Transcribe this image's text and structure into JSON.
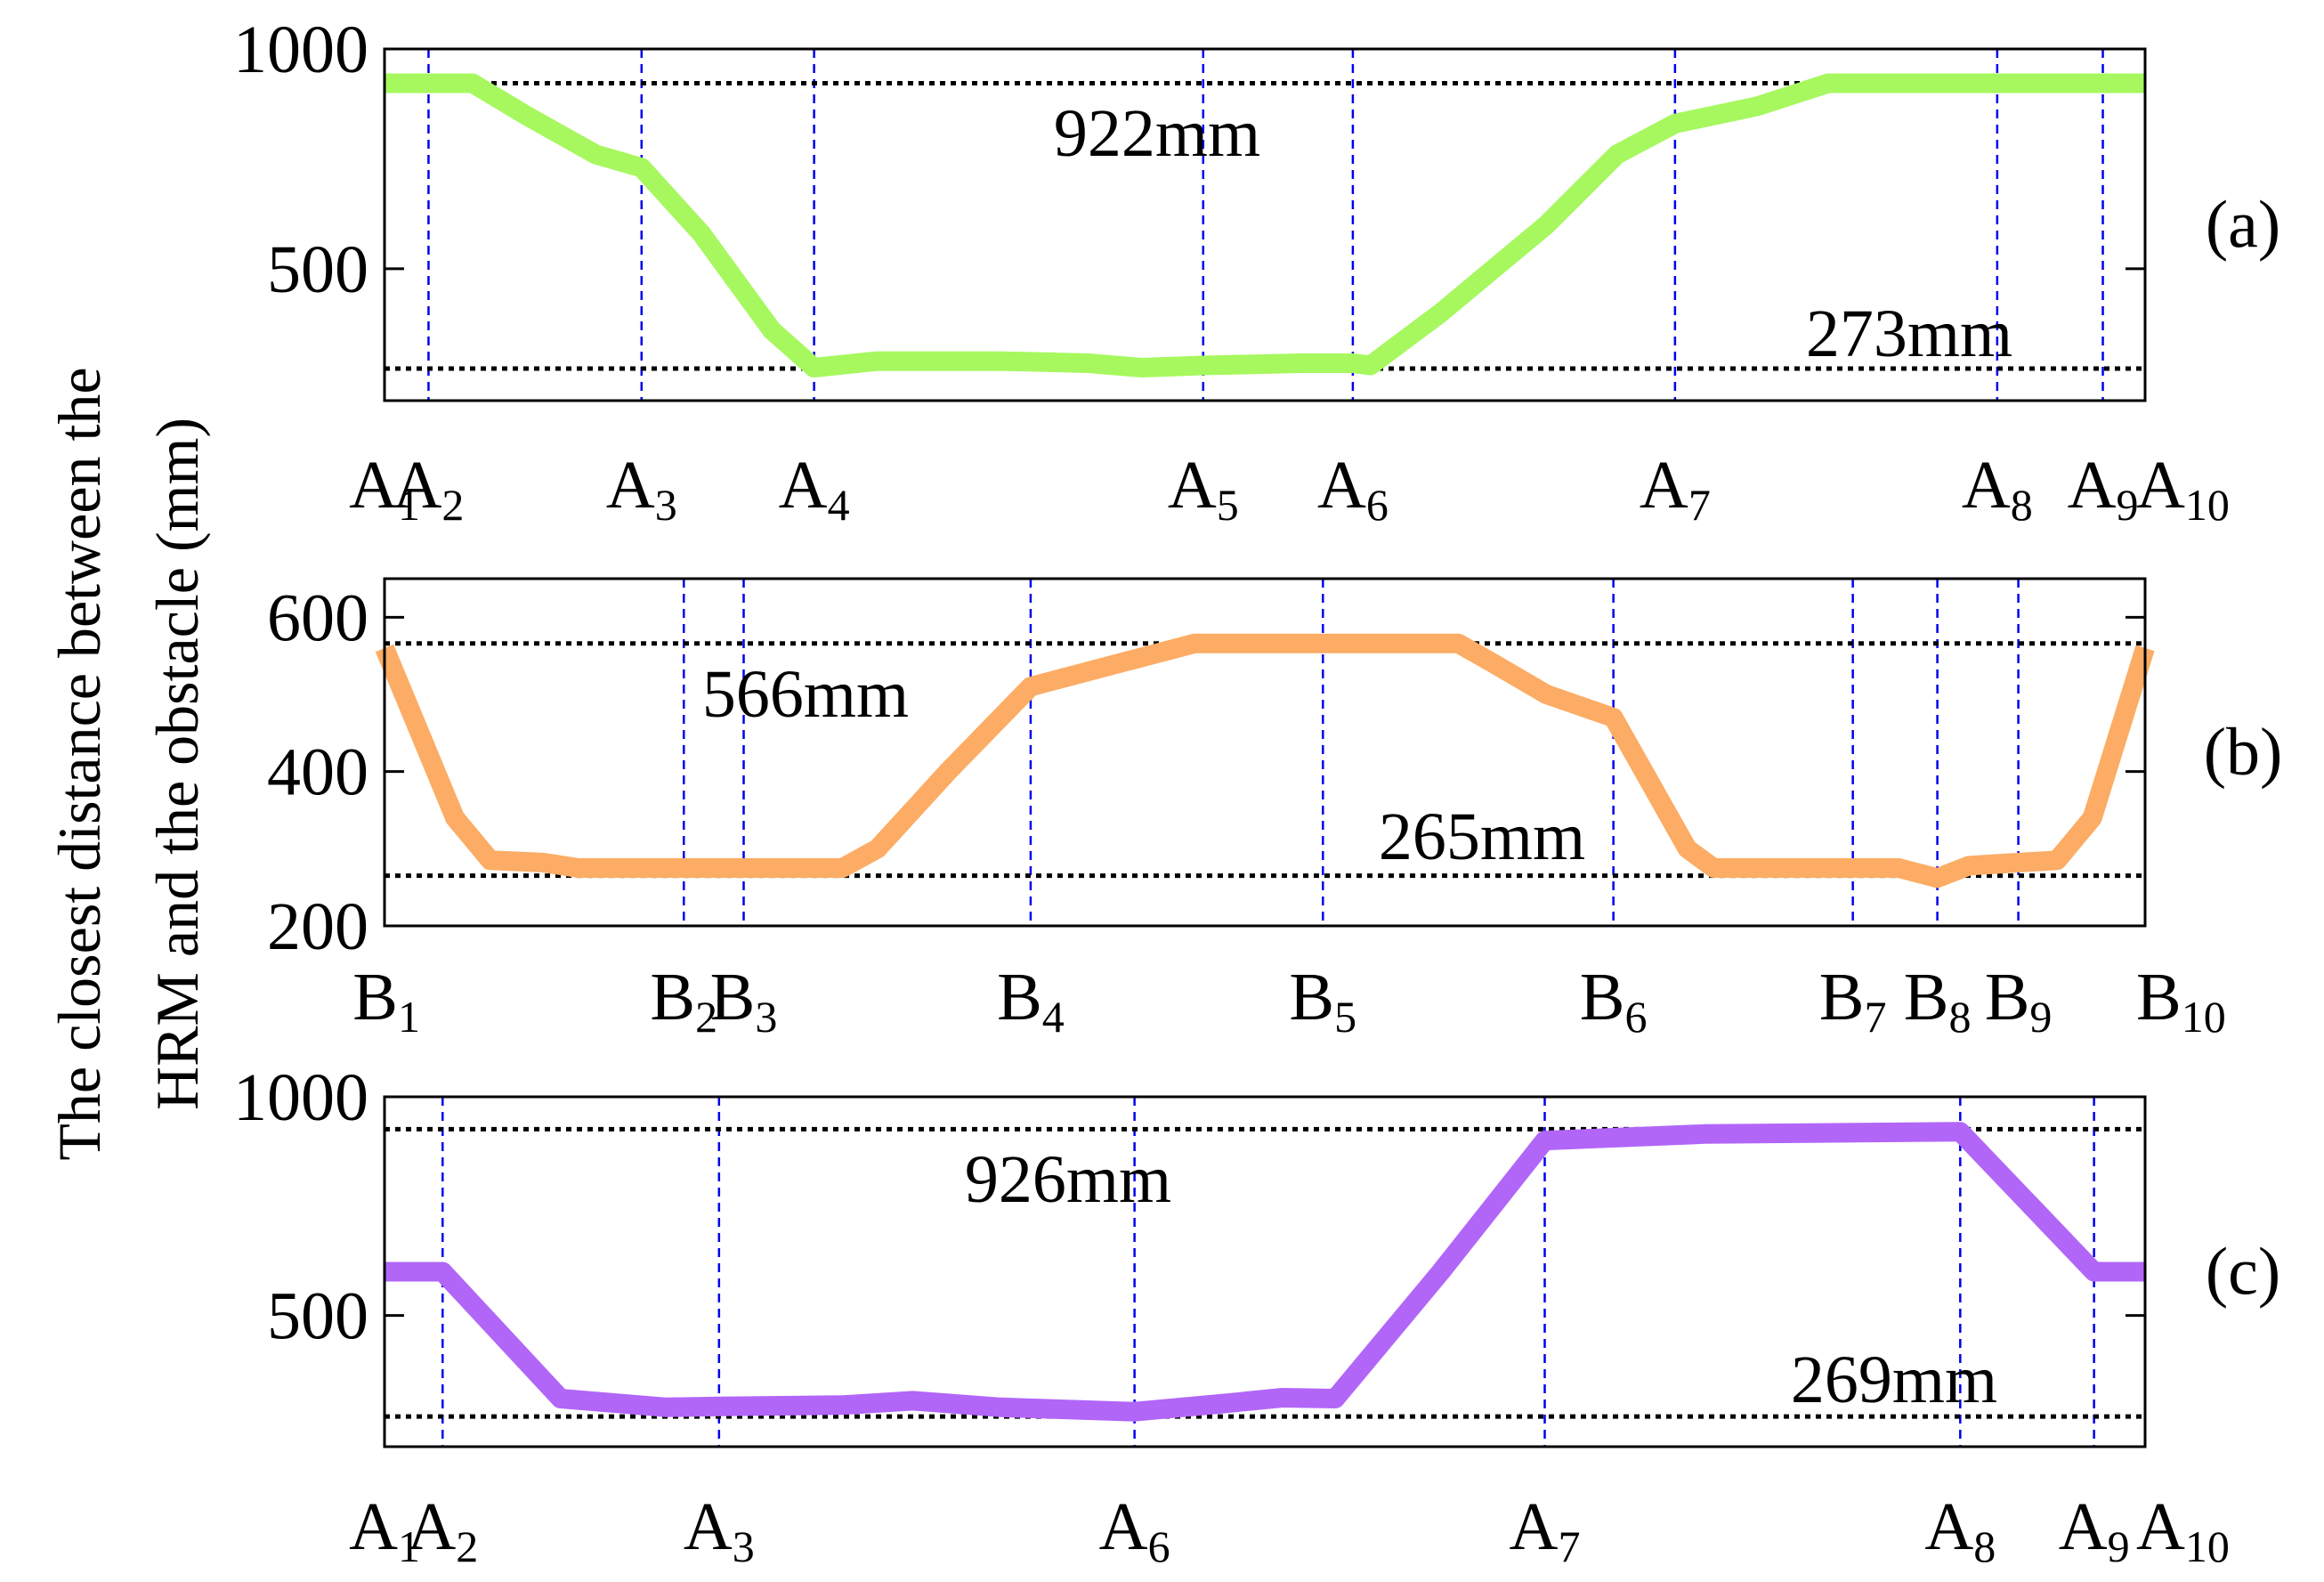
{
  "y_axis_label_line1": "The closest distance between the",
  "y_axis_label_line2": "HRM and the obstacle (mm)",
  "chart_data": [
    {
      "type": "line",
      "panel_label": "(a)",
      "ylim": [
        200,
        1000
      ],
      "yticks": [
        "1000",
        "500"
      ],
      "yticks_values": [
        1000,
        500
      ],
      "xlim": [
        0,
        100
      ],
      "markers": [
        {
          "letter": "A",
          "sub": "1",
          "x": 0
        },
        {
          "letter": "A",
          "sub": "2",
          "x": 2.5
        },
        {
          "letter": "A",
          "sub": "3",
          "x": 14.6
        },
        {
          "letter": "A",
          "sub": "4",
          "x": 24.4
        },
        {
          "letter": "A",
          "sub": "5",
          "x": 46.5
        },
        {
          "letter": "A",
          "sub": "6",
          "x": 55
        },
        {
          "letter": "A",
          "sub": "7",
          "x": 73.3
        },
        {
          "letter": "A",
          "sub": "8",
          "x": 91.6
        },
        {
          "letter": "A",
          "sub": "9",
          "x": 97.6
        },
        {
          "letter": "A",
          "sub": "10",
          "x": 100
        }
      ],
      "reference_lines": [
        {
          "value": 922,
          "label": "922mm"
        },
        {
          "value": 273,
          "label": "273mm"
        }
      ],
      "series": [
        {
          "color": "#a6f85e",
          "points": [
            [
              0,
              922
            ],
            [
              5,
              922
            ],
            [
              8,
              850
            ],
            [
              12,
              760
            ],
            [
              14.6,
              730
            ],
            [
              18,
              580
            ],
            [
              22,
              360
            ],
            [
              24.4,
              275
            ],
            [
              28,
              290
            ],
            [
              35,
              290
            ],
            [
              40,
              285
            ],
            [
              43,
              275
            ],
            [
              46.5,
              280
            ],
            [
              52,
              285
            ],
            [
              55,
              285
            ],
            [
              56,
              280
            ],
            [
              60,
              400
            ],
            [
              66,
              600
            ],
            [
              70,
              760
            ],
            [
              73.3,
              830
            ],
            [
              78,
              870
            ],
            [
              82,
              922
            ],
            [
              91.6,
              922
            ],
            [
              100,
              922
            ]
          ]
        }
      ]
    },
    {
      "type": "line",
      "panel_label": "(b)",
      "ylim": [
        200,
        650
      ],
      "yticks": [
        "600",
        "400",
        "200"
      ],
      "yticks_values": [
        600,
        400,
        200
      ],
      "xlim": [
        0,
        100
      ],
      "markers": [
        {
          "letter": "B",
          "sub": "1",
          "x": 0
        },
        {
          "letter": "B",
          "sub": "2",
          "x": 17
        },
        {
          "letter": "B",
          "sub": "3",
          "x": 20.4
        },
        {
          "letter": "B",
          "sub": "4",
          "x": 36.7
        },
        {
          "letter": "B",
          "sub": "5",
          "x": 53.3
        },
        {
          "letter": "B",
          "sub": "6",
          "x": 69.8
        },
        {
          "letter": "B",
          "sub": "7",
          "x": 83.4
        },
        {
          "letter": "B",
          "sub": "8",
          "x": 88.2
        },
        {
          "letter": "B",
          "sub": "9",
          "x": 92.8
        },
        {
          "letter": "B",
          "sub": "10",
          "x": 100
        }
      ],
      "reference_lines": [
        {
          "value": 566,
          "label": "566mm"
        },
        {
          "value": 265,
          "label": "265mm"
        }
      ],
      "series": [
        {
          "color": "#fcac64",
          "points": [
            [
              0,
              560
            ],
            [
              2,
              450
            ],
            [
              4,
              340
            ],
            [
              6,
              285
            ],
            [
              9,
              282
            ],
            [
              11,
              275
            ],
            [
              17,
              275
            ],
            [
              20.4,
              275
            ],
            [
              26,
              275
            ],
            [
              28,
              300
            ],
            [
              32,
              400
            ],
            [
              36.7,
              510
            ],
            [
              40,
              530
            ],
            [
              46,
              566
            ],
            [
              61,
              566
            ],
            [
              63,
              540
            ],
            [
              66,
              500
            ],
            [
              69.8,
              470
            ],
            [
              74,
              300
            ],
            [
              75.5,
              275
            ],
            [
              83.4,
              275
            ],
            [
              86,
              275
            ],
            [
              88.2,
              262
            ],
            [
              90,
              278
            ],
            [
              95,
              285
            ],
            [
              97,
              340
            ],
            [
              100,
              560
            ]
          ]
        }
      ]
    },
    {
      "type": "line",
      "panel_label": "(c)",
      "ylim": [
        200,
        1000
      ],
      "yticks": [
        "1000",
        "500"
      ],
      "yticks_values": [
        1000,
        500
      ],
      "xlim": [
        0,
        100
      ],
      "markers": [
        {
          "letter": "A",
          "sub": "1",
          "x": 0
        },
        {
          "letter": "A",
          "sub": "2",
          "x": 3.3
        },
        {
          "letter": "A",
          "sub": "3",
          "x": 19
        },
        {
          "letter": "A",
          "sub": "6",
          "x": 42.6
        },
        {
          "letter": "A",
          "sub": "7",
          "x": 65.9
        },
        {
          "letter": "A",
          "sub": "8",
          "x": 89.5
        },
        {
          "letter": "A",
          "sub": "9",
          "x": 97.1
        },
        {
          "letter": "A",
          "sub": "10",
          "x": 100
        }
      ],
      "reference_lines": [
        {
          "value": 926,
          "label": "926mm"
        },
        {
          "value": 269,
          "label": "269mm"
        }
      ],
      "series": [
        {
          "color": "#b166f8",
          "points": [
            [
              0,
              600
            ],
            [
              3.3,
              600
            ],
            [
              10,
              310
            ],
            [
              16,
              290
            ],
            [
              19,
              292
            ],
            [
              26,
              295
            ],
            [
              30,
              305
            ],
            [
              35,
              290
            ],
            [
              42.6,
              280
            ],
            [
              48,
              300
            ],
            [
              51,
              312
            ],
            [
              54,
              310
            ],
            [
              60,
              600
            ],
            [
              65.9,
              900
            ],
            [
              75,
              915
            ],
            [
              89.5,
              920
            ],
            [
              97.1,
              600
            ],
            [
              100,
              600
            ]
          ]
        }
      ]
    }
  ]
}
